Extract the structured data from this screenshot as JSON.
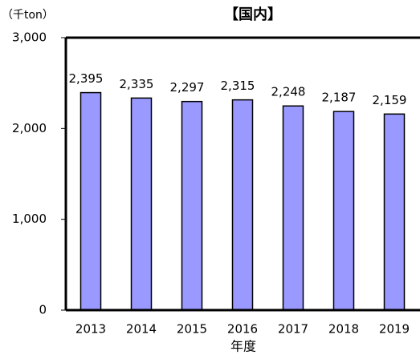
{
  "chart_data": {
    "type": "bar",
    "title": "【国内】",
    "y_label": "（千ton）",
    "x_label": "年度",
    "categories": [
      "2013",
      "2014",
      "2015",
      "2016",
      "2017",
      "2018",
      "2019"
    ],
    "values": [
      2395,
      2335,
      2297,
      2315,
      2248,
      2187,
      2159
    ],
    "value_labels": [
      "2,395",
      "2,335",
      "2,297",
      "2,315",
      "2,248",
      "2,187",
      "2,159"
    ],
    "color": "#9999ff",
    "ylim": [
      0,
      3000
    ],
    "yticks": [
      {
        "value": 0,
        "label": "0"
      },
      {
        "value": 1000,
        "label": "1,000"
      },
      {
        "value": 2000,
        "label": "2,000"
      },
      {
        "value": 3000,
        "label": "3,000"
      }
    ],
    "grid": false
  }
}
